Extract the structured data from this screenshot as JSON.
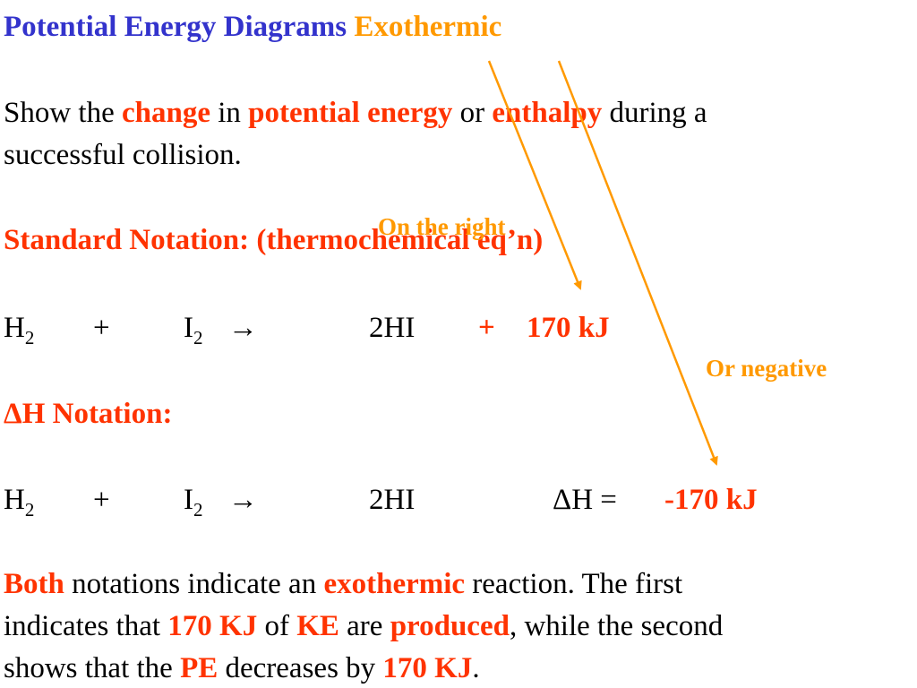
{
  "title": {
    "main": "Potential Energy Diagrams",
    "accent": "Exothermic"
  },
  "intro": {
    "p1": "Show the ",
    "change": "change",
    "p2": " in ",
    "pe": "potential energy",
    "p3": " or ",
    "enthalpy": "enthalpy",
    "p4": " during a",
    "line2": "successful collision."
  },
  "standard": {
    "heading": "Standard Notation:  (thermochemical eq’n)",
    "h": "H",
    "h_sub": "2",
    "plus": "+",
    "i": "I",
    "i_sub": "2",
    "arrow": "→",
    "product": "2HI",
    "energy_sign": "+",
    "energy": "170 kJ"
  },
  "annotations": {
    "right": "On the right",
    "negative": "Or negative"
  },
  "deltaH": {
    "heading": "ΔH Notation:",
    "h": "H",
    "h_sub": "2",
    "plus": "+",
    "i": "I",
    "i_sub": "2",
    "arrow": "→",
    "product": "2HI",
    "label": "ΔH  =",
    "value": "-170 kJ"
  },
  "summary": {
    "both": "Both",
    "s1": " notations indicate an ",
    "exo": "exothermic",
    "s2": " reaction. The first",
    "s3": "indicates that ",
    "kj1": "170 KJ",
    "s4": " of ",
    "ke": "KE",
    "s5": " are ",
    "produced": "produced",
    "s6": ", while the second",
    "s7": "shows that the ",
    "pe": "PE",
    "s8": " decreases by ",
    "kj2": "170 KJ",
    "s9": "."
  },
  "colors": {
    "red": "#ff3300",
    "orange": "#ff9900",
    "blue": "#3333cc"
  }
}
